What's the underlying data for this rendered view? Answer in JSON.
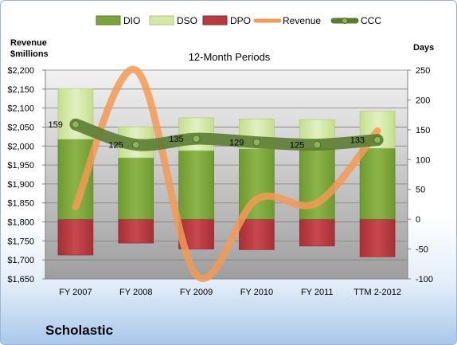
{
  "company": "Scholastic",
  "chart_data": {
    "type": "bar",
    "title": "12-Month Periods",
    "ylabel_left": "Revenue\n$millions",
    "ylabel_right": "Days",
    "categories": [
      "FY 2007",
      "FY 2008",
      "FY 2009",
      "FY 2010",
      "FY 2011",
      "TTM 2-2012"
    ],
    "left_axis": {
      "min": 1650,
      "max": 2200,
      "step": 50,
      "format": "$"
    },
    "right_axis": {
      "min": -100,
      "max": 250,
      "step": 50
    },
    "legend": [
      "DIO",
      "DSO",
      "DPO",
      "Revenue",
      "CCC"
    ],
    "legend_position": "top",
    "series": [
      {
        "name": "DIO",
        "axis": "right",
        "values": [
          134,
          103,
          115,
          118,
          119,
          119
        ]
      },
      {
        "name": "DSO",
        "axis": "right",
        "values": [
          85,
          52,
          55,
          50,
          48,
          62
        ]
      },
      {
        "name": "DPO",
        "axis": "right",
        "values": [
          -60,
          -40,
          -50,
          -51,
          -45,
          -63
        ]
      },
      {
        "name": "Revenue",
        "axis": "left",
        "values": [
          1840,
          2200,
          1660,
          1860,
          1850,
          2040
        ]
      },
      {
        "name": "CCC",
        "axis": "right",
        "values": [
          159,
          125,
          135,
          129,
          125,
          133
        ]
      }
    ],
    "data_labels": [
      "159",
      "125",
      "135",
      "129",
      "125",
      "133"
    ],
    "colors": {
      "DIO": "#7aa33a",
      "DSO": "#d3e8a5",
      "DPO": "#b8393e",
      "Revenue": "#f39a55",
      "CCC": "#5b7d33"
    },
    "grid": true
  }
}
